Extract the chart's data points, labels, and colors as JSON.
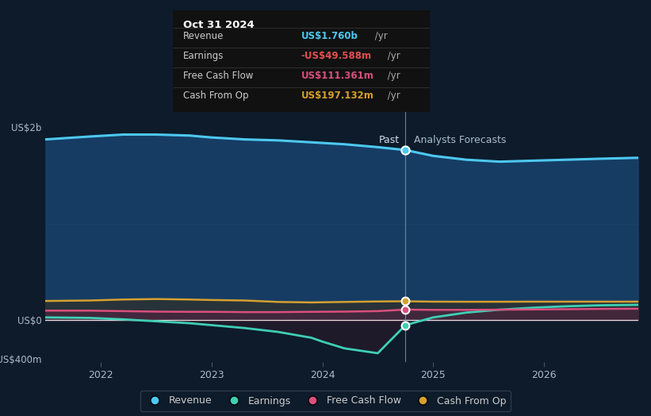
{
  "bg_color": "#0d1b2a",
  "ylabel_2b": "US$2b",
  "ylabel_0": "US$0",
  "ylabel_neg400m": "-US$400m",
  "past_label": "Past",
  "forecast_label": "Analysts Forecasts",
  "divider_x": 2024.75,
  "legend": [
    {
      "label": "Revenue",
      "color": "#4dc8f0"
    },
    {
      "label": "Earnings",
      "color": "#3ecfb5"
    },
    {
      "label": "Free Cash Flow",
      "color": "#d94f7e"
    },
    {
      "label": "Cash From Op",
      "color": "#d4a030"
    }
  ],
  "tooltip": {
    "date": "Oct 31 2024",
    "rows": [
      {
        "label": "Revenue",
        "value": "US$1.760b",
        "suffix": " /yr",
        "color": "#4dc8f0"
      },
      {
        "label": "Earnings",
        "value": "-US$49.588m",
        "suffix": " /yr",
        "color": "#e05050"
      },
      {
        "label": "Free Cash Flow",
        "value": "US$111.361m",
        "suffix": " /yr",
        "color": "#d94f7e"
      },
      {
        "label": "Cash From Op",
        "value": "US$197.132m",
        "suffix": " /yr",
        "color": "#d4a030"
      }
    ]
  },
  "x_ticks": [
    2022,
    2023,
    2024,
    2025,
    2026
  ],
  "ylim": [
    -430,
    2150
  ],
  "xlim": [
    2021.5,
    2026.85
  ],
  "revenue": {
    "x": [
      2021.5,
      2021.9,
      2022.2,
      2022.5,
      2022.8,
      2023.0,
      2023.3,
      2023.6,
      2023.9,
      2024.2,
      2024.5,
      2024.75,
      2025.0,
      2025.3,
      2025.6,
      2025.9,
      2026.2,
      2026.5,
      2026.85
    ],
    "y": [
      1870,
      1900,
      1920,
      1920,
      1910,
      1890,
      1870,
      1860,
      1840,
      1820,
      1790,
      1760,
      1700,
      1660,
      1640,
      1650,
      1660,
      1670,
      1680
    ]
  },
  "earnings": {
    "x": [
      2021.5,
      2021.9,
      2022.2,
      2022.5,
      2022.8,
      2023.0,
      2023.3,
      2023.6,
      2023.9,
      2024.0,
      2024.2,
      2024.5,
      2024.75,
      2025.0,
      2025.3,
      2025.6,
      2025.9,
      2026.2,
      2026.5,
      2026.85
    ],
    "y": [
      30,
      25,
      10,
      -10,
      -30,
      -50,
      -80,
      -120,
      -180,
      -220,
      -290,
      -340,
      -50,
      30,
      80,
      110,
      130,
      145,
      155,
      160
    ]
  },
  "fcf": {
    "x": [
      2021.5,
      2021.9,
      2022.2,
      2022.5,
      2022.8,
      2023.0,
      2023.3,
      2023.6,
      2023.9,
      2024.2,
      2024.5,
      2024.75,
      2025.0,
      2025.3,
      2025.6,
      2025.9,
      2026.2,
      2026.5,
      2026.85
    ],
    "y": [
      100,
      100,
      95,
      90,
      88,
      88,
      85,
      85,
      88,
      90,
      95,
      111,
      108,
      108,
      110,
      112,
      115,
      118,
      120
    ]
  },
  "cashop": {
    "x": [
      2021.5,
      2021.9,
      2022.2,
      2022.5,
      2022.8,
      2023.0,
      2023.3,
      2023.6,
      2023.9,
      2024.2,
      2024.5,
      2024.75,
      2025.0,
      2025.3,
      2025.6,
      2025.9,
      2026.2,
      2026.5,
      2026.85
    ],
    "y": [
      200,
      205,
      215,
      220,
      215,
      210,
      205,
      190,
      185,
      190,
      195,
      197,
      193,
      192,
      192,
      193,
      193,
      193,
      193
    ]
  },
  "fill_rev_color": "#1a4878",
  "fill_rev_alpha": 0.75,
  "fill_earn_neg_color": "#2a1a2a",
  "fill_earn_pos_color": "#1a2f3a",
  "fill_earn_alpha": 0.6,
  "fill_fcf_color": "#5a2040",
  "fill_fcf_alpha": 0.5,
  "fill_cashop_color": "#3a2a10",
  "fill_cashop_alpha": 0.5
}
